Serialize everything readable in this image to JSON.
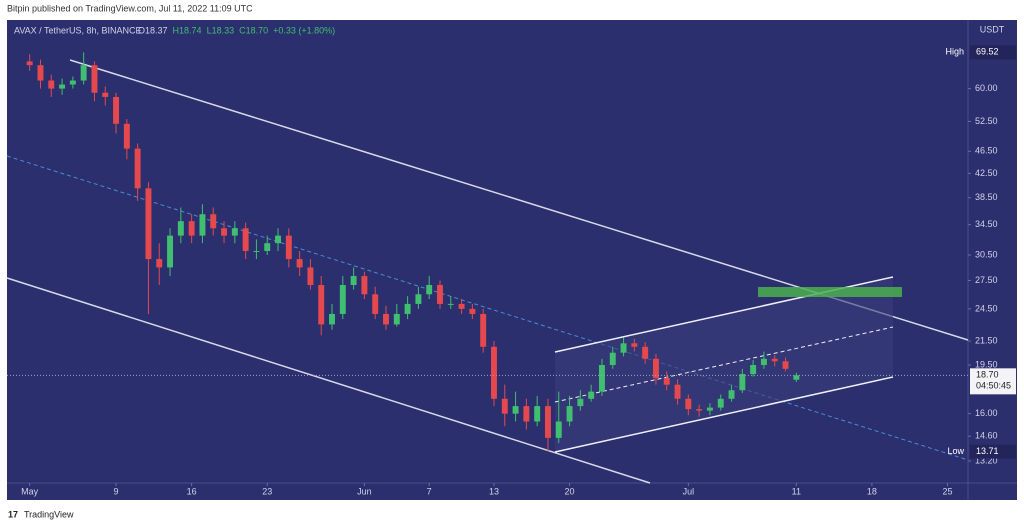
{
  "header": "Bitpin published on TradingView.com, Jul 11, 2022 11:09 UTC",
  "footer": "TradingView",
  "chart_data": {
    "type": "candlestick",
    "symbol": "AVAX / TetherUS, 8h, BINANCE",
    "ohlc_legend": [
      "O18.37",
      "H18.74",
      "L18.33",
      "C18.70",
      "+0.33 (+1.80%)"
    ],
    "currency": "USDT",
    "log_scale": true,
    "grid": false,
    "up_color": "#3fbf6f",
    "down_color": "#e5484d",
    "x": [
      0,
      1,
      2,
      3,
      4,
      5,
      6,
      7,
      8,
      9,
      10,
      11,
      12,
      13,
      14,
      15,
      16,
      17,
      18,
      19,
      20,
      21,
      22,
      23,
      24,
      25,
      26,
      27,
      28,
      29,
      30,
      31,
      32,
      33,
      34,
      35,
      36,
      37,
      38,
      39,
      40,
      41,
      42,
      43,
      44,
      45,
      46,
      47,
      48,
      49,
      50,
      51,
      52,
      53,
      54,
      55,
      56,
      57,
      58,
      59,
      60,
      61,
      62,
      63,
      64,
      65,
      66,
      67,
      68,
      69,
      70,
      71
    ],
    "open": [
      67,
      66,
      62,
      60,
      61,
      62,
      66,
      59,
      58,
      52,
      47,
      40,
      30,
      29,
      33,
      35,
      33,
      36,
      34,
      33,
      34,
      31,
      31,
      32,
      33,
      30,
      29,
      27,
      23,
      24,
      27,
      28,
      26,
      24,
      23,
      24,
      25,
      26,
      27,
      25,
      25,
      24.5,
      24,
      21,
      17,
      16,
      16.5,
      15.5,
      16.5,
      14.5,
      15.5,
      16.5,
      17,
      17.5,
      19.5,
      20.5,
      21.3,
      21,
      20,
      18.5,
      18,
      17,
      16.3,
      16.2,
      16.4,
      17,
      17.6,
      18.8,
      19.5,
      20,
      19.8,
      18.37
    ],
    "high": [
      69,
      67.5,
      63.5,
      62.5,
      63,
      69.52,
      67,
      60.5,
      59,
      53,
      48,
      41,
      32,
      34,
      37,
      36,
      37.5,
      37,
      35,
      35,
      34.8,
      32.5,
      33,
      34,
      34,
      31,
      30,
      28,
      25,
      28,
      29,
      28.5,
      26.8,
      24.8,
      25,
      25.8,
      26.8,
      28,
      27.5,
      25.8,
      25.5,
      25,
      24.5,
      21.5,
      18,
      17.5,
      17,
      17.2,
      17,
      17.5,
      17.2,
      17.6,
      18,
      20,
      21,
      21.8,
      21.7,
      21.4,
      20.4,
      19,
      18.4,
      17.3,
      16.6,
      16.7,
      17.3,
      18,
      19.2,
      19.9,
      20.6,
      20.3,
      20.1,
      18.9
    ],
    "low": [
      64.5,
      60,
      58,
      58.5,
      60,
      61,
      57,
      56,
      50,
      45,
      38,
      24,
      27,
      28,
      32,
      32,
      32,
      33,
      32,
      32,
      30,
      30,
      30.5,
      31,
      29,
      28,
      26.5,
      22,
      22.5,
      23.5,
      26.5,
      25.5,
      23.5,
      22.5,
      22.8,
      23.5,
      24.5,
      25.5,
      24.5,
      24.5,
      24,
      23.5,
      20.5,
      16.5,
      15.2,
      15.5,
      15,
      15.2,
      13.71,
      14.2,
      15.2,
      16.2,
      16.8,
      17.2,
      19.2,
      20.2,
      20.6,
      19.6,
      18,
      17.6,
      16.6,
      15.9,
      15.8,
      15.9,
      16.2,
      16.8,
      17.4,
      18.6,
      19.2,
      19.4,
      19,
      18.2
    ],
    "close": [
      66,
      62,
      60,
      61,
      62,
      66,
      59,
      58,
      52,
      47,
      40,
      30,
      29,
      33,
      35,
      33,
      36,
      34,
      33,
      34,
      31,
      31,
      32,
      33,
      30,
      29,
      27,
      23,
      24,
      27,
      28,
      26,
      24,
      23,
      24,
      25,
      26,
      27,
      25,
      25,
      24.5,
      24,
      21,
      17,
      16,
      16.5,
      15.5,
      16.5,
      14.5,
      15.5,
      16.5,
      17,
      17.5,
      19.5,
      20.5,
      21.3,
      21,
      20,
      18.5,
      18,
      17,
      16.3,
      16.2,
      16.4,
      17,
      17.6,
      18.8,
      19.5,
      20,
      19.8,
      19.2,
      18.7
    ],
    "xlim": [
      -2.1,
      86.9
    ],
    "xticks": [
      {
        "value": 0,
        "label": "May"
      },
      {
        "value": 8,
        "label": "9"
      },
      {
        "value": 15,
        "label": "16"
      },
      {
        "value": 22,
        "label": "23"
      },
      {
        "value": 31,
        "label": "Jun"
      },
      {
        "value": 37,
        "label": "7"
      },
      {
        "value": 43,
        "label": "13"
      },
      {
        "value": 50,
        "label": "20"
      },
      {
        "value": 61,
        "label": "Jul"
      },
      {
        "value": 71,
        "label": "11"
      },
      {
        "value": 78,
        "label": "18"
      },
      {
        "value": 85,
        "label": "25"
      }
    ],
    "ylim": [
      12.07,
      79.3
    ],
    "yticks": [
      {
        "value": 60,
        "label": "60.00"
      },
      {
        "value": 52.5,
        "label": "52.50"
      },
      {
        "value": 46.5,
        "label": "46.50"
      },
      {
        "value": 42.5,
        "label": "42.50"
      },
      {
        "value": 38.5,
        "label": "38.50"
      },
      {
        "value": 34.5,
        "label": "34.50"
      },
      {
        "value": 30.5,
        "label": "30.50"
      },
      {
        "value": 27.5,
        "label": "27.50"
      },
      {
        "value": 24.5,
        "label": "24.50"
      },
      {
        "value": 21.5,
        "label": "21.50"
      },
      {
        "value": 19.5,
        "label": "19.50"
      },
      {
        "value": 16,
        "label": "16.00"
      },
      {
        "value": 14.6,
        "label": "14.60"
      },
      {
        "value": 13.2,
        "label": "13.20"
      }
    ],
    "high_label": "High",
    "low_label": "Low",
    "last_price": {
      "value": 18.7,
      "label": "18.70"
    },
    "countdown": "04:50:45"
  }
}
